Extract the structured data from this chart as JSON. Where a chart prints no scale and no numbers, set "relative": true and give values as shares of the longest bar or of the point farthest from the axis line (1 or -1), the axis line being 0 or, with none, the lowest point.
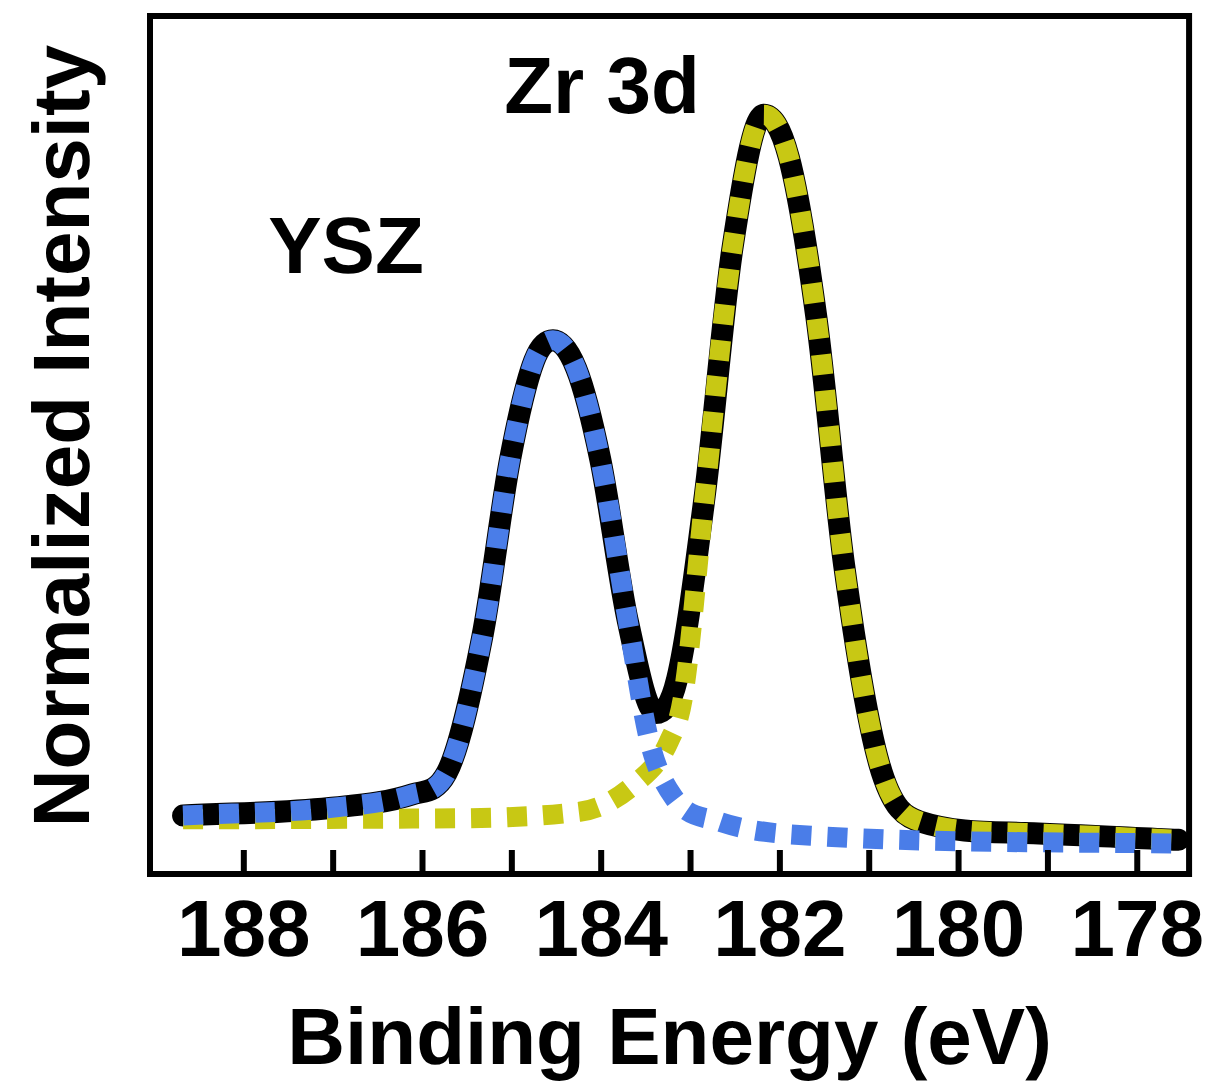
{
  "chart_data": {
    "type": "line",
    "relative": true,
    "xlabel": "Binding Energy (eV)",
    "ylabel": "Normalized Intensity",
    "annotations": [
      "YSZ",
      "Zr 3d"
    ],
    "xlim": [
      189.05,
      177.42
    ],
    "xticks": [
      188,
      {
        "value": 187,
        "label": null
      },
      186,
      {
        "value": 185,
        "label": null
      },
      184,
      {
        "value": 183,
        "label": null
      },
      182,
      {
        "value": 181,
        "label": null
      },
      180,
      {
        "value": 179,
        "label": null
      },
      178
    ],
    "grid": false,
    "legend": false,
    "marker": "none",
    "series": [
      {
        "color": "#000000",
        "line_style": "solid",
        "x": [
          188.68,
          187.04,
          186.11,
          185.73,
          185.33,
          185.02,
          184.75,
          184.54,
          184.28,
          184.01,
          183.7,
          183.39,
          183.15,
          182.84,
          182.53,
          182.18,
          181.9,
          181.59,
          181.28,
          180.89,
          180.43,
          179.26,
          177.54
        ],
        "values": [
          0.077,
          0.087,
          0.105,
          0.133,
          0.313,
          0.546,
          0.676,
          0.703,
          0.666,
          0.546,
          0.332,
          0.212,
          0.257,
          0.499,
          0.825,
          1,
          0.944,
          0.732,
          0.406,
          0.146,
          0.069,
          0.054,
          0.045
        ]
      },
      {
        "color": "#4a7de8",
        "line_style": "dotted",
        "x": [
          188.68,
          187.04,
          186.11,
          185.73,
          185.33,
          185.02,
          184.75,
          184.54,
          184.28,
          184.01,
          183.7,
          183.46,
          183.19,
          182.68,
          181.59,
          177.54
        ],
        "values": [
          0.077,
          0.087,
          0.105,
          0.133,
          0.313,
          0.546,
          0.676,
          0.703,
          0.666,
          0.546,
          0.332,
          0.175,
          0.101,
          0.069,
          0.05,
          0.04
        ]
      },
      {
        "color": "#c8c814",
        "line_style": "dotted",
        "x": [
          188.68,
          186.11,
          184.24,
          183.62,
          183.24,
          183.08,
          182.84,
          182.53,
          182.18,
          181.9,
          181.59,
          181.28,
          180.89,
          180.43,
          179.26,
          177.54
        ],
        "values": [
          0.072,
          0.073,
          0.082,
          0.119,
          0.175,
          0.236,
          0.499,
          0.825,
          1,
          0.944,
          0.732,
          0.406,
          0.146,
          0.069,
          0.054,
          0.045
        ]
      }
    ]
  }
}
